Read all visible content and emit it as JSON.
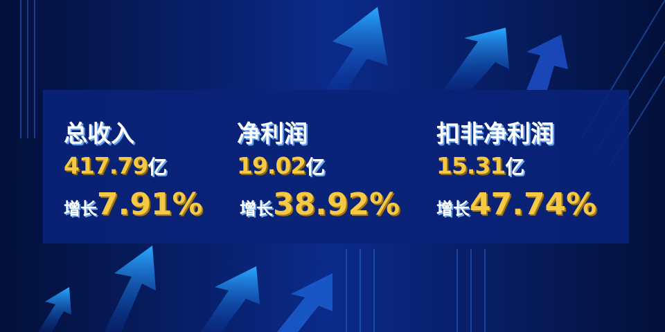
{
  "metrics": [
    {
      "title": "总收入",
      "value": "417.79",
      "unit": "亿",
      "growth_label": "增长",
      "growth": "7.91%"
    },
    {
      "title": "净利润",
      "value": "19.02",
      "unit": "亿",
      "growth_label": "增长",
      "growth": "38.92%"
    },
    {
      "title": "扣非净利润",
      "value": "15.31",
      "unit": "亿",
      "growth_label": "增长",
      "growth": "47.74%"
    }
  ],
  "colors": {
    "background": "#06154a",
    "panel": "#0a2378",
    "value": "#f6c945",
    "title": "#ffffff"
  }
}
